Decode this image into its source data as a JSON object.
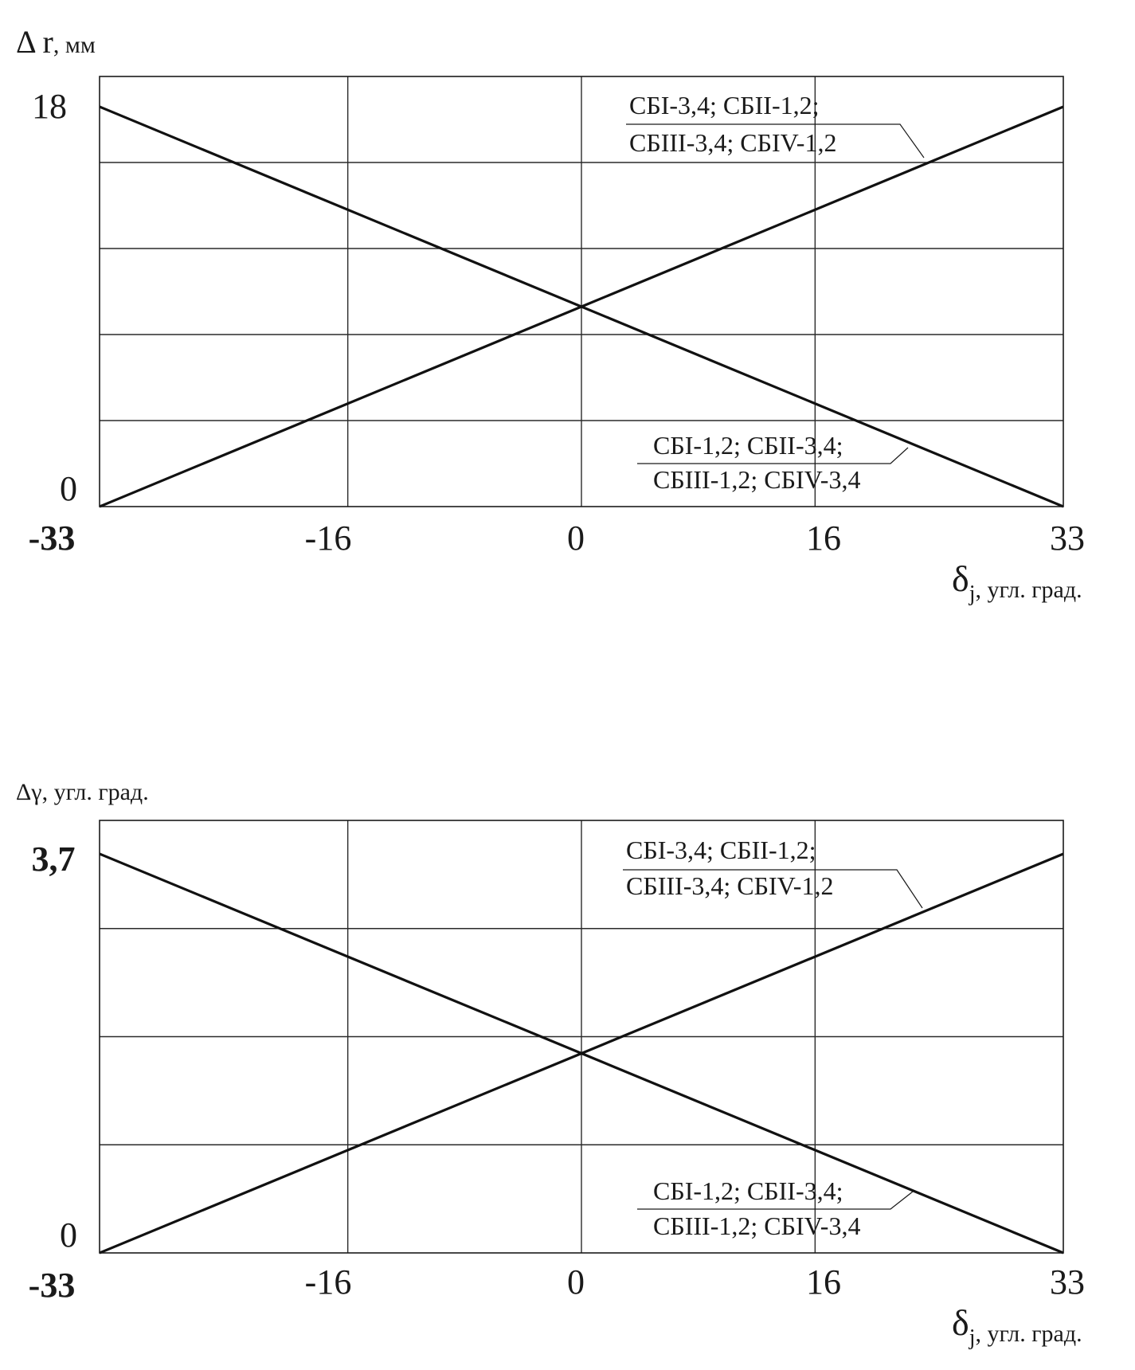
{
  "chart_data": [
    {
      "type": "line",
      "ylabel_main": "Δ r",
      "ylabel_unit": ", мм",
      "xlabel_symbol": "δ",
      "xlabel_sub": "j",
      "xlabel_unit": ", угл. град.",
      "xlim": [
        -33,
        33
      ],
      "ylim": [
        0,
        18
      ],
      "xticks": [
        "-33",
        "-16",
        "0",
        "16",
        "33"
      ],
      "yticks": [
        "0",
        "18"
      ],
      "grid": true,
      "series": [
        {
          "x": [
            -33,
            33
          ],
          "y": [
            18,
            0
          ],
          "label_line1": "СБІ-1,2; СБІІ-3,4;",
          "label_line2": "СБІІІ-1,2; СБІV-3,4"
        },
        {
          "x": [
            -33,
            33
          ],
          "y": [
            0,
            18
          ],
          "label_line1": "СБІ-3,4; СБІІ-1,2;",
          "label_line2": "СБІІІ-3,4; СБІV-1,2"
        }
      ]
    },
    {
      "type": "line",
      "ylabel_main": "Δγ",
      "ylabel_unit": ", угл. град.",
      "xlabel_symbol": "δ",
      "xlabel_sub": "j",
      "xlabel_unit": ", угл. град.",
      "xlim": [
        -33,
        33
      ],
      "ylim": [
        0,
        3.7
      ],
      "xticks": [
        "-33",
        "-16",
        "0",
        "16",
        "33"
      ],
      "yticks": [
        "0",
        "3,7"
      ],
      "grid": true,
      "series": [
        {
          "x": [
            -33,
            33
          ],
          "y": [
            3.7,
            0
          ],
          "label_line1": "СБІ-1,2; СБІІ-3,4;",
          "label_line2": "СБІІІ-1,2; СБІV-3,4"
        },
        {
          "x": [
            -33,
            33
          ],
          "y": [
            0,
            3.7
          ],
          "label_line1": "СБІ-3,4; СБІІ-1,2;",
          "label_line2": "СБІІІ-3,4; СБІV-1,2"
        }
      ]
    }
  ]
}
